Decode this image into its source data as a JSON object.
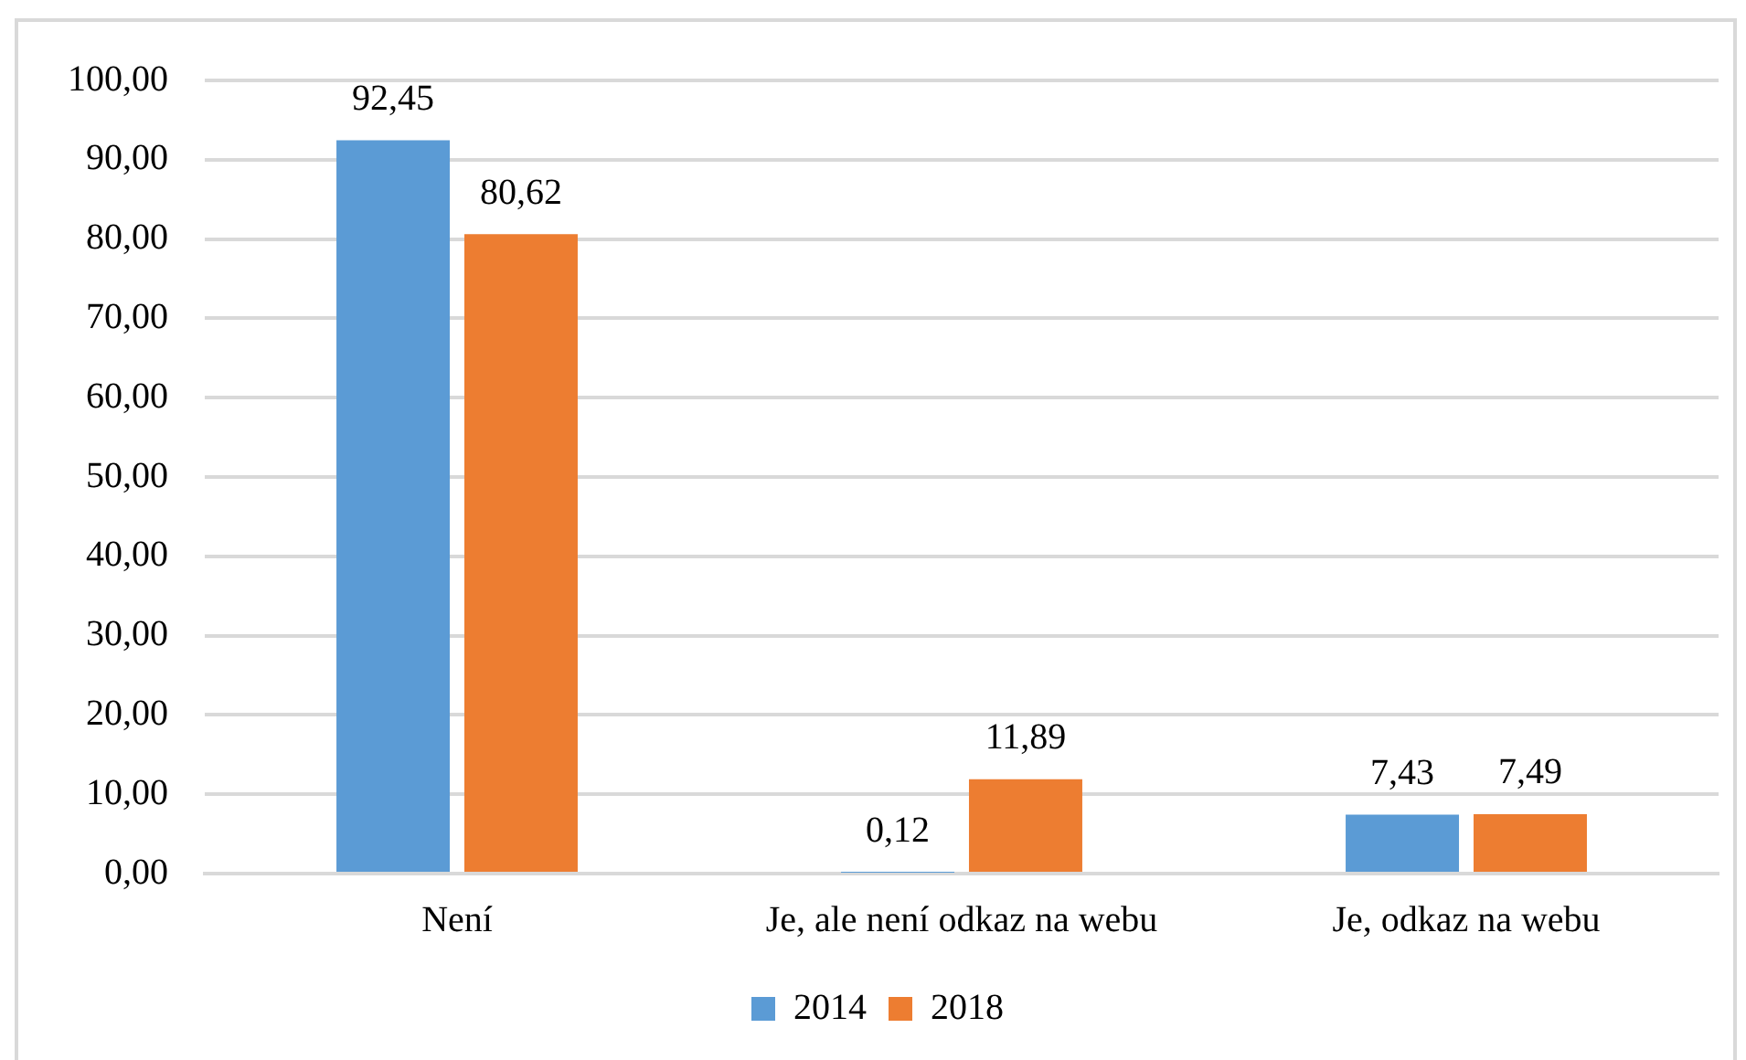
{
  "chart_data": {
    "type": "bar",
    "categories": [
      "Není",
      "Je, ale není odkaz na webu",
      "Je, odkaz na webu"
    ],
    "series": [
      {
        "name": "2014",
        "color": "#5b9bd5",
        "values": [
          92.45,
          0.12,
          7.43
        ],
        "value_labels": [
          "92,45",
          "0,12",
          "7,43"
        ]
      },
      {
        "name": "2018",
        "color": "#ed7d31",
        "values": [
          80.62,
          11.89,
          7.49
        ],
        "value_labels": [
          "80,62",
          "11,89",
          "7,49"
        ]
      }
    ],
    "ylim": [
      0,
      100
    ],
    "yticks": [
      {
        "value": 0,
        "label": "0,00"
      },
      {
        "value": 10,
        "label": "10,00"
      },
      {
        "value": 20,
        "label": "20,00"
      },
      {
        "value": 30,
        "label": "30,00"
      },
      {
        "value": 40,
        "label": "40,00"
      },
      {
        "value": 50,
        "label": "50,00"
      },
      {
        "value": 60,
        "label": "60,00"
      },
      {
        "value": 70,
        "label": "70,00"
      },
      {
        "value": 80,
        "label": "80,00"
      },
      {
        "value": 90,
        "label": "90,00"
      },
      {
        "value": 100,
        "label": "100,00"
      }
    ],
    "grid": "y",
    "legend": "bottom"
  }
}
